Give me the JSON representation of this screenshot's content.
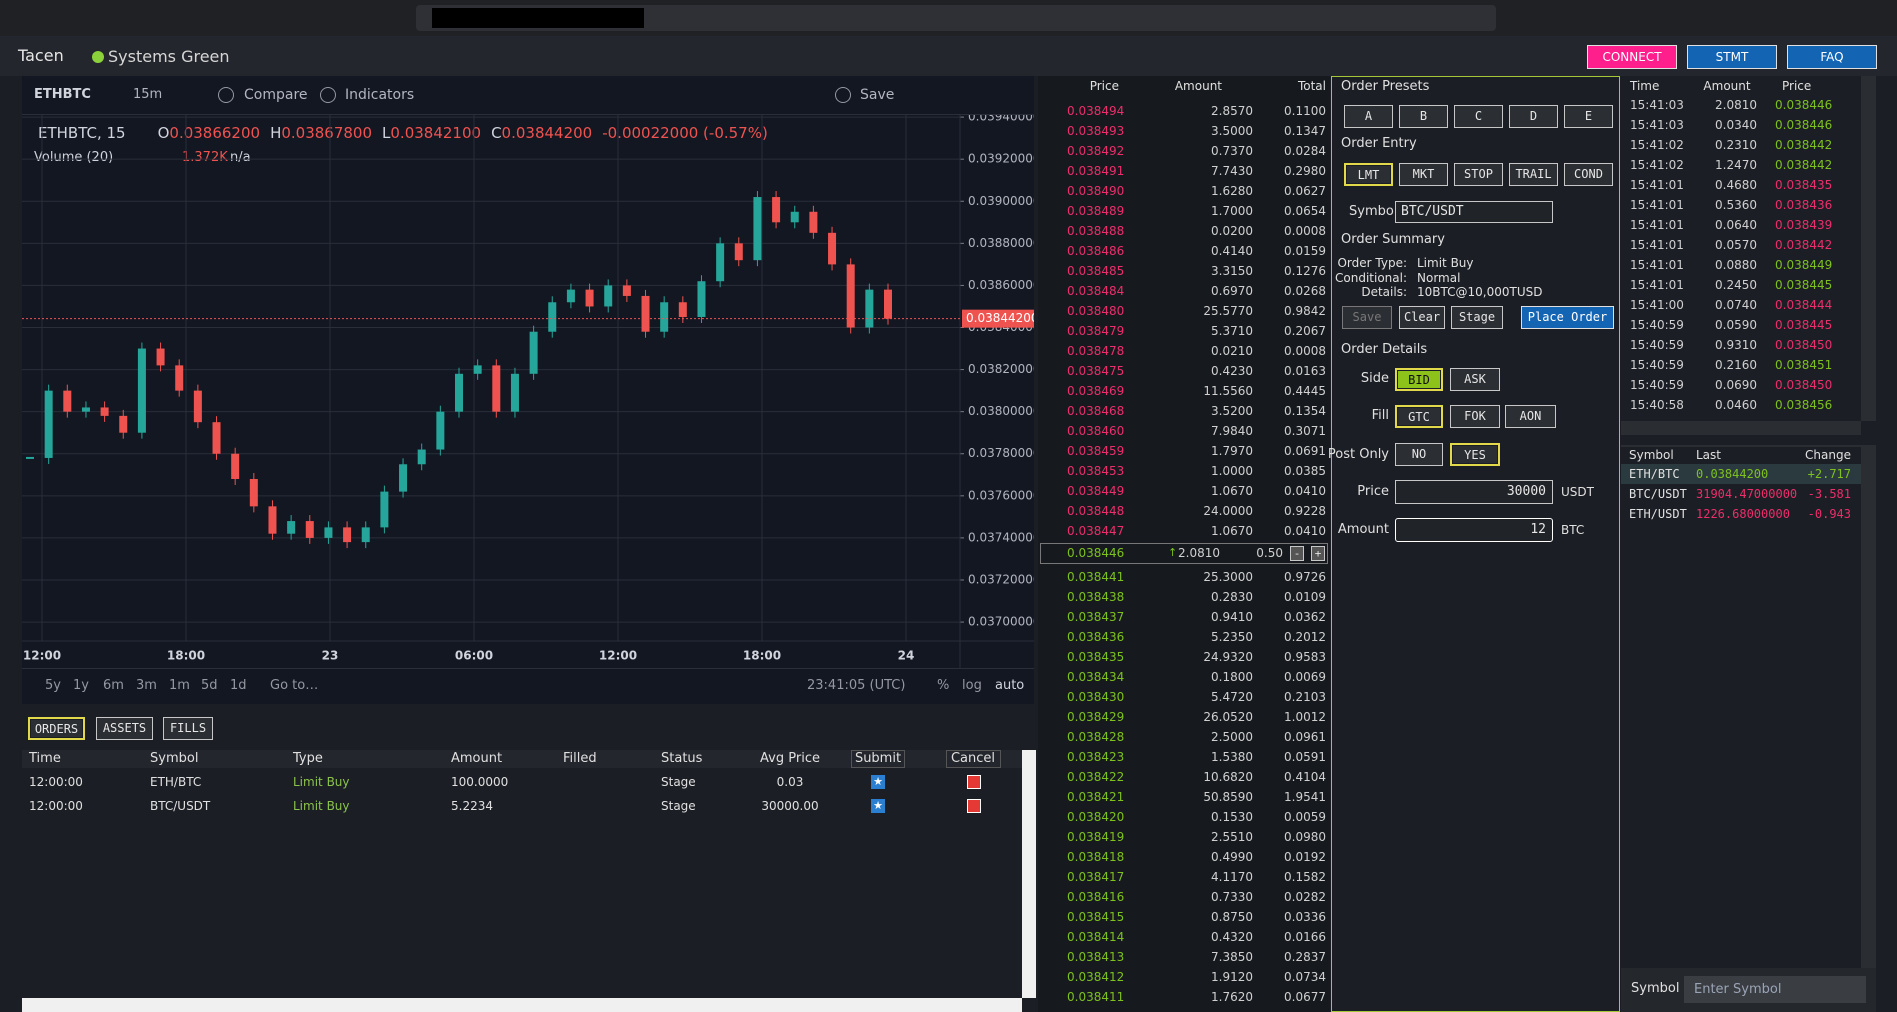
{
  "app": {
    "name": "Tacen",
    "status": "Systems Green",
    "buttons": [
      "CONNECT",
      "STMT",
      "FAQ"
    ]
  },
  "chart": {
    "type": "candlestick",
    "symbol": "ETHBTC",
    "interval": "15m",
    "toolbar": [
      "Compare",
      "Indicators",
      "Save"
    ],
    "legend_title": "ETHBTC, 15",
    "legend": [
      [
        "O",
        "0.03866200"
      ],
      [
        "H",
        "0.03867800"
      ],
      [
        "L",
        "0.03842100"
      ],
      [
        "C",
        "0.03844200"
      ]
    ],
    "change": "-0.00022000 (-0.57%)",
    "volume_label": "Volume (20)",
    "volume_value": "1.372K",
    "volume_extra": "n/a",
    "closes": [
      0.03778,
      0.0381,
      0.038,
      0.03802,
      0.03798,
      0.0379,
      0.0383,
      0.03822,
      0.0381,
      0.03795,
      0.0378,
      0.03768,
      0.03755,
      0.03742,
      0.03748,
      0.0374,
      0.03745,
      0.03738,
      0.03745,
      0.03762,
      0.03775,
      0.03782,
      0.038,
      0.03818,
      0.03822,
      0.038,
      0.03818,
      0.03838,
      0.03852,
      0.03858,
      0.0385,
      0.0386,
      0.03855,
      0.03838,
      0.03852,
      0.03845,
      0.03862,
      0.0388,
      0.03872,
      0.03902,
      0.0389,
      0.03895,
      0.03885,
      0.0387,
      0.0384,
      0.03858,
      0.038442
    ],
    "ylim": [
      0.03691,
      0.03941
    ],
    "yticks": [
      {
        "value": 0.037,
        "label": "0.03700000"
      },
      {
        "value": 0.0372,
        "label": "0.03720000"
      },
      {
        "value": 0.0374,
        "label": "0.03740000"
      },
      {
        "value": 0.0376,
        "label": "0.03760000"
      },
      {
        "value": 0.0378,
        "label": "0.03780000"
      },
      {
        "value": 0.038,
        "label": "0.03800000"
      },
      {
        "value": 0.0382,
        "label": "0.03820000"
      },
      {
        "value": 0.0384,
        "label": "0.03840000"
      },
      {
        "value": 0.0386,
        "label": "0.03860000"
      },
      {
        "value": 0.0388,
        "label": "0.03880000"
      },
      {
        "value": 0.039,
        "label": "0.03900000"
      },
      {
        "value": 0.0392,
        "label": "0.03920000"
      },
      {
        "value": 0.0394,
        "label": "0.03940000"
      }
    ],
    "last": {
      "value": 0.038442,
      "label": "0.03844200"
    },
    "x_labels": [
      "12:00",
      "18:00",
      "23",
      "06:00",
      "12:00",
      "18:00",
      "24"
    ],
    "ranges": [
      "5y",
      "1y",
      "6m",
      "3m",
      "1m",
      "5d",
      "1d"
    ],
    "goto": "Go to…",
    "clock": "23:41:05 (UTC)",
    "scale_options": [
      "%",
      "log",
      "auto"
    ]
  },
  "order_book": {
    "headers": [
      "Price",
      "Amount",
      "Total"
    ],
    "asks": [
      [
        "0.038494",
        "2.8570",
        "0.1100"
      ],
      [
        "0.038493",
        "3.5000",
        "0.1347"
      ],
      [
        "0.038492",
        "0.7370",
        "0.0284"
      ],
      [
        "0.038491",
        "7.7430",
        "0.2980"
      ],
      [
        "0.038490",
        "1.6280",
        "0.0627"
      ],
      [
        "0.038489",
        "1.7000",
        "0.0654"
      ],
      [
        "0.038488",
        "0.0200",
        "0.0008"
      ],
      [
        "0.038486",
        "0.4140",
        "0.0159"
      ],
      [
        "0.038485",
        "3.3150",
        "0.1276"
      ],
      [
        "0.038484",
        "0.6970",
        "0.0268"
      ],
      [
        "0.038480",
        "25.5770",
        "0.9842"
      ],
      [
        "0.038479",
        "5.3710",
        "0.2067"
      ],
      [
        "0.038478",
        "0.0210",
        "0.0008"
      ],
      [
        "0.038475",
        "0.4230",
        "0.0163"
      ],
      [
        "0.038469",
        "11.5560",
        "0.4445"
      ],
      [
        "0.038468",
        "3.5200",
        "0.1354"
      ],
      [
        "0.038460",
        "7.9840",
        "0.3071"
      ],
      [
        "0.038459",
        "1.7970",
        "0.0691"
      ],
      [
        "0.038453",
        "1.0000",
        "0.0385"
      ],
      [
        "0.038449",
        "1.0670",
        "0.0410"
      ],
      [
        "0.038448",
        "24.0000",
        "0.9228"
      ],
      [
        "0.038447",
        "1.0670",
        "0.0410"
      ]
    ],
    "last": {
      "price": "0.038446",
      "amount": "2.0810",
      "step": "0.50",
      "controls": [
        "-",
        "+"
      ]
    },
    "bids": [
      [
        "0.038441",
        "25.3000",
        "0.9726"
      ],
      [
        "0.038438",
        "0.2830",
        "0.0109"
      ],
      [
        "0.038437",
        "0.9410",
        "0.0362"
      ],
      [
        "0.038436",
        "5.2350",
        "0.2012"
      ],
      [
        "0.038435",
        "24.9320",
        "0.9583"
      ],
      [
        "0.038434",
        "0.1800",
        "0.0069"
      ],
      [
        "0.038430",
        "5.4720",
        "0.2103"
      ],
      [
        "0.038429",
        "26.0520",
        "1.0012"
      ],
      [
        "0.038428",
        "2.5000",
        "0.0961"
      ],
      [
        "0.038423",
        "1.5380",
        "0.0591"
      ],
      [
        "0.038422",
        "10.6820",
        "0.4104"
      ],
      [
        "0.038421",
        "50.8590",
        "1.9541"
      ],
      [
        "0.038420",
        "0.1530",
        "0.0059"
      ],
      [
        "0.038419",
        "2.5510",
        "0.0980"
      ],
      [
        "0.038418",
        "0.4990",
        "0.0192"
      ],
      [
        "0.038417",
        "4.1170",
        "0.1582"
      ],
      [
        "0.038416",
        "0.7330",
        "0.0282"
      ],
      [
        "0.038415",
        "0.8750",
        "0.0336"
      ],
      [
        "0.038414",
        "0.4320",
        "0.0166"
      ],
      [
        "0.038413",
        "7.3850",
        "0.2837"
      ],
      [
        "0.038412",
        "1.9120",
        "0.0734"
      ],
      [
        "0.038411",
        "1.7620",
        "0.0677"
      ]
    ]
  },
  "order_form": {
    "presets_title": "Order Presets",
    "presets": [
      "A",
      "B",
      "C",
      "D",
      "E"
    ],
    "entry_title": "Order Entry",
    "entry_types": [
      "LMT",
      "MKT",
      "STOP",
      "TRAIL",
      "COND"
    ],
    "symbol_label": "Symbol",
    "symbol_value": "BTC/USDT",
    "summary_title": "Order Summary",
    "summary": [
      [
        "Order Type:",
        "Limit Buy"
      ],
      [
        "Conditional:",
        "Normal"
      ],
      [
        "Details:",
        "10BTC@10,000TUSD"
      ]
    ],
    "actions": [
      "Save",
      "Clear",
      "Stage",
      "Place Order"
    ],
    "details_title": "Order Details",
    "side_label": "Side",
    "sides": [
      "BID",
      "ASK"
    ],
    "fill_label": "Fill",
    "fills": [
      "GTC",
      "FOK",
      "AON"
    ],
    "post_only_label": "Post Only",
    "post_only": [
      "NO",
      "YES"
    ],
    "price_label": "Price",
    "price_value": "30000",
    "price_unit": "USDT",
    "amount_label": "Amount",
    "amount_value": "12",
    "amount_unit": "BTC"
  },
  "trades": {
    "headers": [
      "Time",
      "Amount",
      "Price"
    ],
    "rows": [
      [
        "15:41:03",
        "2.0810",
        "0.038446"
      ],
      [
        "15:41:03",
        "0.0340",
        "0.038446"
      ],
      [
        "15:41:02",
        "0.2310",
        "0.038442"
      ],
      [
        "15:41:02",
        "1.2470",
        "0.038442"
      ],
      [
        "15:41:01",
        "0.4680",
        "0.038435"
      ],
      [
        "15:41:01",
        "0.5360",
        "0.038436"
      ],
      [
        "15:41:01",
        "0.0640",
        "0.038439"
      ],
      [
        "15:41:01",
        "0.0570",
        "0.038442"
      ],
      [
        "15:41:01",
        "0.0880",
        "0.038449"
      ],
      [
        "15:41:01",
        "0.2450",
        "0.038445"
      ],
      [
        "15:41:00",
        "0.0740",
        "0.038444"
      ],
      [
        "15:40:59",
        "0.0590",
        "0.038445"
      ],
      [
        "15:40:59",
        "0.9310",
        "0.038450"
      ],
      [
        "15:40:59",
        "0.2160",
        "0.038451"
      ],
      [
        "15:40:59",
        "0.0690",
        "0.038450"
      ],
      [
        "15:40:58",
        "0.0460",
        "0.038456"
      ]
    ],
    "price_colors": [
      "#7dc11e",
      "#7dc11e",
      "#7dc11e",
      "#7dc11e",
      "#ec2e6a",
      "#ec2e6a",
      "#ec2e6a",
      "#ec2e6a",
      "#7dc11e",
      "#7dc11e",
      "#ec2e6a",
      "#ec2e6a",
      "#ec2e6a",
      "#7dc11e",
      "#ec2e6a",
      "#7dc11e"
    ]
  },
  "symbols": {
    "headers": [
      "Symbol",
      "Last",
      "Change"
    ],
    "rows": [
      [
        "ETH/BTC",
        "0.03844200",
        "+2.717"
      ],
      [
        "BTC/USDT",
        "31904.47000000",
        "-3.581"
      ],
      [
        "ETH/USDT",
        "1226.68000000",
        "-0.943"
      ]
    ],
    "colors": [
      "#7dc11e",
      "#ec2e6a",
      "#ec2e6a"
    ],
    "search_label": "Symbol",
    "search_placeholder": "Enter Symbol"
  },
  "orders": {
    "tabs": [
      "ORDERS",
      "ASSETS",
      "FILLS"
    ],
    "headers": [
      "Time",
      "Symbol",
      "Type",
      "Amount",
      "Filled",
      "Status",
      "Avg Price",
      "Submit",
      "Cancel"
    ],
    "rows": [
      {
        "time": "12:00:00",
        "symbol": "ETH/BTC",
        "type": "Limit Buy",
        "amount": "100.0000",
        "status": "Stage",
        "avg_price": "0.03"
      },
      {
        "time": "12:00:00",
        "symbol": "BTC/USDT",
        "type": "Limit Buy",
        "amount": "5.2234",
        "status": "Stage",
        "avg_price": "30000.00"
      }
    ]
  }
}
